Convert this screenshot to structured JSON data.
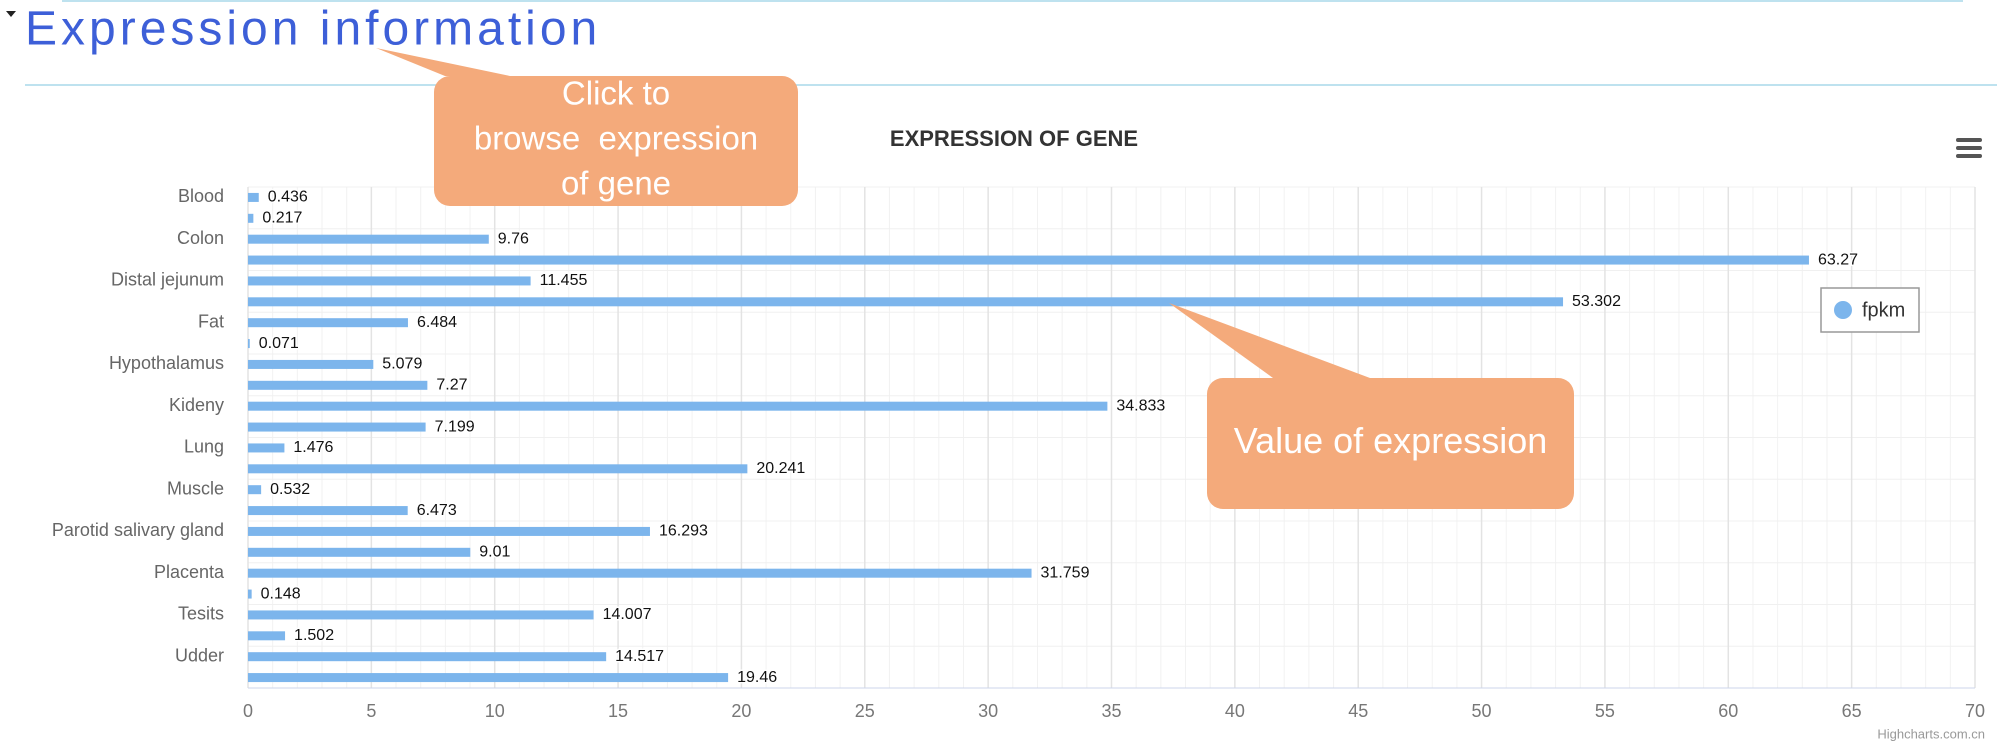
{
  "header": {
    "title": "Expression information"
  },
  "chart_data": {
    "type": "bar",
    "orientation": "horizontal",
    "title": "EXPRESSION OF GENE",
    "categories": [
      "Blood",
      null,
      "Colon",
      null,
      "Distal jejunum",
      null,
      "Fat",
      null,
      "Hypothalamus",
      null,
      "Kideny",
      null,
      "Lung",
      null,
      "Muscle",
      null,
      "Parotid salivary gland",
      null,
      "Placenta",
      null,
      "Tesits",
      null,
      "Udder",
      null
    ],
    "series": [
      {
        "name": "fpkm",
        "color": "#7cb5ec",
        "values": [
          0.436,
          0.217,
          9.76,
          63.27,
          11.455,
          53.302,
          6.484,
          0.071,
          5.079,
          7.27,
          34.833,
          7.199,
          1.476,
          20.241,
          0.532,
          6.473,
          16.293,
          9.01,
          31.759,
          0.148,
          14.007,
          1.502,
          14.517,
          19.46
        ]
      }
    ],
    "xlim": [
      0,
      70
    ],
    "xticks": [
      0,
      5,
      10,
      15,
      20,
      25,
      30,
      35,
      40,
      45,
      50,
      55,
      60,
      65,
      70
    ],
    "grid": true,
    "minor_grid": true,
    "data_labels": true,
    "legend": "right",
    "credits": "Highcharts.com.cn",
    "annotations": [
      {
        "lines": [
          "Click to",
          "browse  expression",
          "of gene"
        ],
        "color": "#f4aa7b"
      },
      {
        "lines": [
          "Value of expression"
        ],
        "color": "#f4aa7b"
      }
    ]
  }
}
